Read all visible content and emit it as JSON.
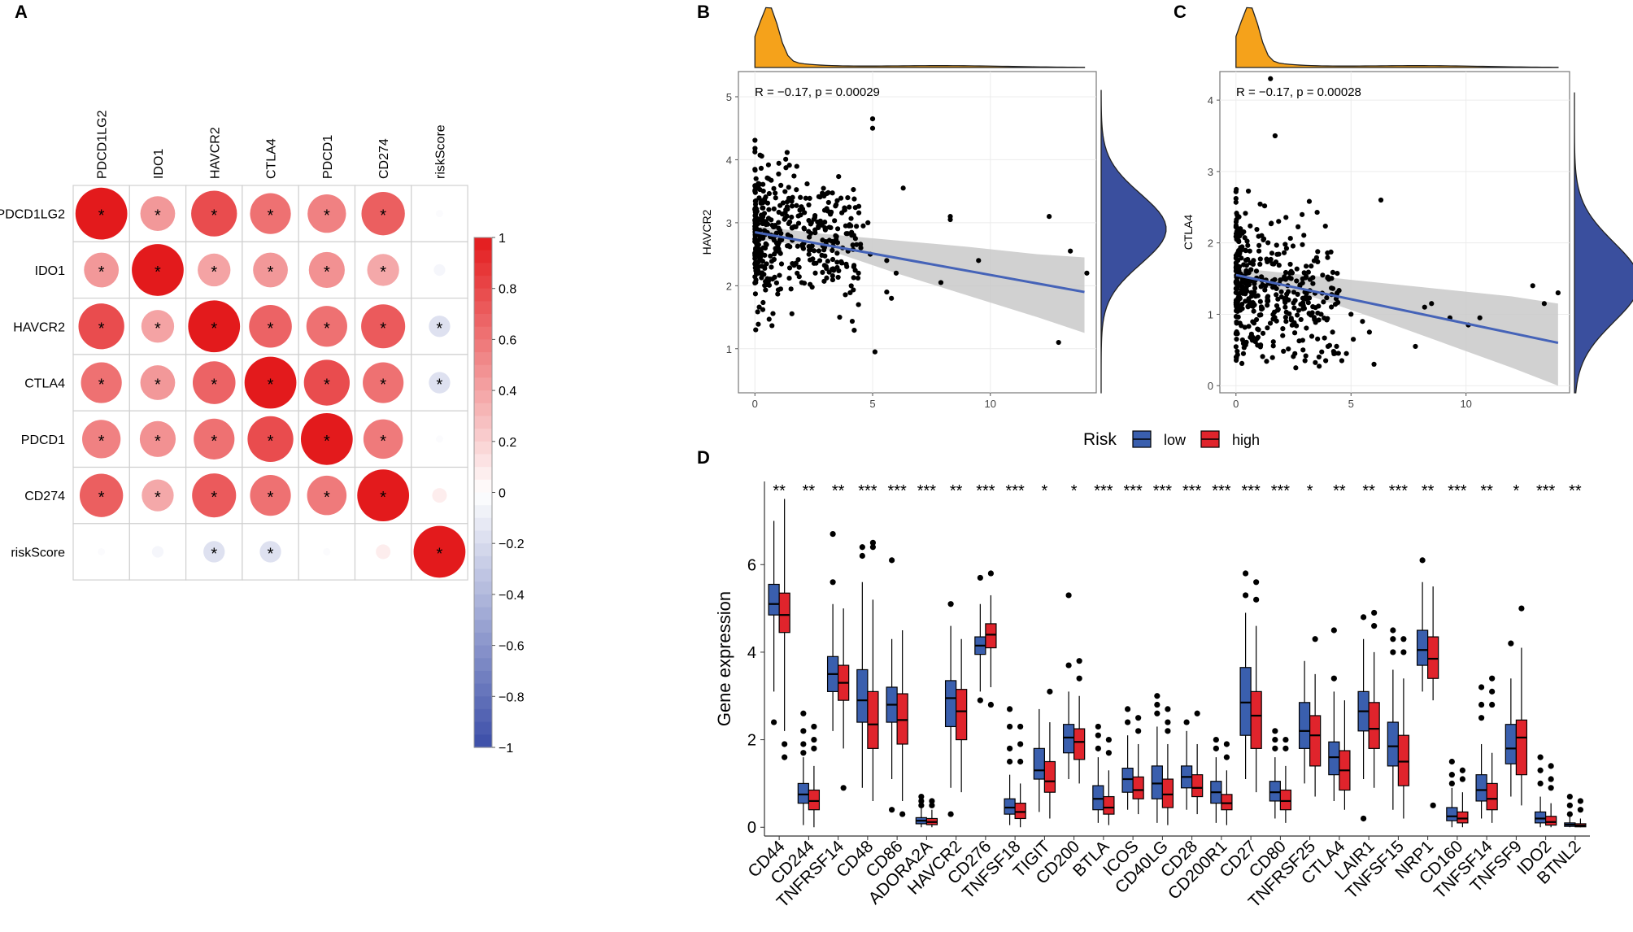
{
  "panels": {
    "a": "A",
    "b": "B",
    "c": "C",
    "d": "D"
  },
  "colors": {
    "low": "#3a5fae",
    "high": "#e0242c",
    "density": "#f5a21b",
    "densityRight": "#3a4f9e",
    "fitLine": "#4563b8",
    "ci": "#c9c9c9"
  },
  "chart_data": [
    {
      "type": "heatmap",
      "panel": "A",
      "variables": [
        "PDCD1LG2",
        "IDO1",
        "HAVCR2",
        "CTLA4",
        "PDCD1",
        "CD274",
        "riskScore"
      ],
      "matrix": [
        [
          1.0,
          0.45,
          0.78,
          0.62,
          0.55,
          0.7,
          -0.02
        ],
        [
          0.45,
          1.0,
          0.4,
          0.45,
          0.48,
          0.38,
          -0.05
        ],
        [
          0.78,
          0.4,
          1.0,
          0.68,
          0.62,
          0.72,
          -0.17
        ],
        [
          0.62,
          0.45,
          0.68,
          1.0,
          0.78,
          0.62,
          -0.17
        ],
        [
          0.55,
          0.48,
          0.62,
          0.78,
          1.0,
          0.58,
          -0.02
        ],
        [
          0.7,
          0.38,
          0.72,
          0.62,
          0.58,
          1.0,
          0.08
        ],
        [
          -0.02,
          -0.05,
          -0.17,
          -0.17,
          -0.02,
          0.08,
          1.0
        ]
      ],
      "significant": [
        [
          true,
          true,
          true,
          true,
          true,
          true,
          false
        ],
        [
          true,
          true,
          true,
          true,
          true,
          true,
          false
        ],
        [
          true,
          true,
          true,
          true,
          true,
          true,
          true
        ],
        [
          true,
          true,
          true,
          true,
          true,
          true,
          true
        ],
        [
          true,
          true,
          true,
          true,
          true,
          true,
          false
        ],
        [
          true,
          true,
          true,
          true,
          true,
          true,
          false
        ],
        [
          false,
          false,
          true,
          true,
          false,
          false,
          true
        ]
      ],
      "sigSymbol": "*",
      "colorbar": {
        "range": [
          -1,
          1
        ],
        "ticks": [
          "1",
          "0.8",
          "0.6",
          "0.4",
          "0.2",
          "0",
          "−0.2",
          "−0.4",
          "−0.6",
          "−0.8",
          "−1"
        ]
      }
    },
    {
      "type": "scatter",
      "panel": "B",
      "xlabel": "",
      "ylabel": "HAVCR2",
      "annotation": "R = −0.17, p = 0.00029",
      "xlim": [
        -0.7,
        14.5
      ],
      "ylim": [
        0.3,
        5.4
      ],
      "xticks": [
        0,
        5,
        10
      ],
      "xtickLabels": [
        "0",
        "5",
        "10"
      ],
      "yticks": [
        1,
        2,
        3,
        4,
        5
      ],
      "ytickLabels": [
        "1",
        "2",
        "3",
        "4",
        "5"
      ],
      "fit": {
        "x": [
          0,
          14
        ],
        "y": [
          2.85,
          1.9
        ]
      },
      "ci": {
        "x": [
          0,
          3,
          6,
          9,
          12,
          14
        ],
        "lower": [
          2.75,
          2.58,
          2.2,
          1.85,
          1.5,
          1.25
        ],
        "upper": [
          2.95,
          2.82,
          2.72,
          2.62,
          2.5,
          2.45
        ]
      },
      "points": {
        "x": [
          6.3,
          8.3,
          8.3,
          12.5,
          13.4,
          14.1,
          9.5,
          12.9,
          5.6,
          5.8,
          5.0,
          5.0,
          4.6,
          4.2,
          4.0,
          3.8,
          4.4,
          5.1,
          4.2,
          4.8,
          3.6,
          7.9,
          5.6,
          6.0,
          2.4,
          4.4,
          4.9,
          4.5
        ],
        "y": [
          3.55,
          3.1,
          3.05,
          3.1,
          2.55,
          2.2,
          2.4,
          1.1,
          1.9,
          1.8,
          4.5,
          4.65,
          2.95,
          2.3,
          2.95,
          3.2,
          1.7,
          0.95,
          2.8,
          3.0,
          1.5,
          2.05,
          2.4,
          2.2,
          3.0,
          2.2,
          2.5,
          2.6
        ]
      },
      "pointCloud": {
        "count": 430,
        "xmax": 4.5,
        "ycenter": 2.9,
        "ysd": 0.75,
        "seed": 11
      },
      "marginals": {
        "top": "x",
        "right": "y"
      }
    },
    {
      "type": "scatter",
      "panel": "C",
      "xlabel": "",
      "ylabel": "CTLA4",
      "annotation": "R = −0.17, p = 0.00028",
      "xlim": [
        -0.7,
        14.5
      ],
      "ylim": [
        -0.1,
        4.4
      ],
      "xticks": [
        0,
        5,
        10
      ],
      "xtickLabels": [
        "0",
        "5",
        "10"
      ],
      "yticks": [
        0,
        1,
        2,
        3,
        4
      ],
      "ytickLabels": [
        "0",
        "1",
        "2",
        "3",
        "4"
      ],
      "fit": {
        "x": [
          0,
          14
        ],
        "y": [
          1.55,
          0.6
        ]
      },
      "ci": {
        "x": [
          0,
          3,
          6,
          9,
          12,
          14
        ],
        "lower": [
          1.45,
          1.28,
          0.95,
          0.6,
          0.25,
          0.0
        ],
        "upper": [
          1.65,
          1.55,
          1.45,
          1.35,
          1.25,
          1.15
        ]
      },
      "points": {
        "x": [
          6.3,
          8.2,
          8.5,
          12.9,
          13.4,
          14.0,
          10.6,
          10.1,
          9.3,
          7.8,
          5.8,
          5.0,
          4.4,
          4.2,
          4.0,
          3.9,
          4.8,
          6.0,
          3.7,
          3.0,
          2.6,
          5.1,
          5.5,
          4.6,
          2.4,
          1.5,
          1.7,
          3.4
        ],
        "y": [
          2.6,
          1.1,
          1.15,
          1.4,
          1.15,
          1.3,
          0.95,
          0.85,
          0.95,
          0.55,
          0.75,
          1.0,
          1.3,
          0.75,
          0.55,
          0.35,
          0.45,
          0.3,
          1.0,
          0.35,
          0.25,
          0.65,
          0.9,
          0.35,
          1.6,
          4.3,
          3.5,
          1.75
        ]
      },
      "pointCloud": {
        "count": 430,
        "xmax": 4.5,
        "ycenter": 1.45,
        "ysd": 0.75,
        "seed": 23
      },
      "marginals": {
        "top": "x",
        "right": "y"
      }
    },
    {
      "type": "bar",
      "subtype": "boxplot",
      "panel": "D",
      "ylabel": "Gene expression",
      "xlabel": "",
      "ylim": [
        -0.2,
        7.9
      ],
      "yticks": [
        0,
        2,
        4,
        6
      ],
      "ytickLabels": [
        "0",
        "2",
        "4",
        "6"
      ],
      "legend": {
        "title": "Risk",
        "position": "top",
        "items": [
          "low",
          "high"
        ]
      },
      "categories": [
        "CD44",
        "CD244",
        "TNFRSF14",
        "CD48",
        "CD86",
        "ADORA2A",
        "HAVCR2",
        "CD276",
        "TNFSF18",
        "TIGIT",
        "CD200",
        "BTLA",
        "ICOS",
        "CD40LG",
        "CD28",
        "CD200R1",
        "CD27",
        "CD80",
        "TNFRSF25",
        "CTLA4",
        "LAIR1",
        "TNFSF15",
        "NRP1",
        "CD160",
        "TNFSF14",
        "TNFSF9",
        "IDO2",
        "BTNL2"
      ],
      "significance": [
        "**",
        "**",
        "**",
        "***",
        "***",
        "***",
        "**",
        "***",
        "***",
        "*",
        "*",
        "***",
        "***",
        "***",
        "***",
        "***",
        "***",
        "***",
        "*",
        "**",
        "**",
        "***",
        "**",
        "***",
        "**",
        "*",
        "***",
        "**"
      ],
      "series": [
        {
          "name": "low",
          "stats": [
            [
              3.1,
              4.85,
              5.1,
              5.55,
              7.0
            ],
            [
              0.05,
              0.55,
              0.75,
              1.0,
              1.6
            ],
            [
              2.2,
              3.1,
              3.5,
              3.9,
              5.1
            ],
            [
              0.9,
              2.4,
              2.9,
              3.6,
              5.6
            ],
            [
              1.1,
              2.4,
              2.8,
              3.2,
              4.3
            ],
            [
              0.0,
              0.08,
              0.15,
              0.22,
              0.45
            ],
            [
              0.9,
              2.3,
              2.95,
              3.35,
              4.6
            ],
            [
              3.1,
              3.95,
              4.15,
              4.35,
              5.1
            ],
            [
              0.05,
              0.3,
              0.45,
              0.65,
              1.2
            ],
            [
              0.35,
              1.1,
              1.3,
              1.8,
              2.7
            ],
            [
              1.1,
              1.7,
              2.05,
              2.35,
              3.1
            ],
            [
              0.1,
              0.4,
              0.65,
              0.95,
              1.6
            ],
            [
              0.4,
              0.8,
              1.1,
              1.35,
              2.1
            ],
            [
              0.1,
              0.65,
              1.0,
              1.4,
              2.3
            ],
            [
              0.4,
              0.9,
              1.15,
              1.4,
              2.2
            ],
            [
              0.1,
              0.55,
              0.8,
              1.05,
              1.6
            ],
            [
              1.1,
              2.1,
              2.85,
              3.65,
              4.9
            ],
            [
              0.2,
              0.6,
              0.8,
              1.05,
              1.6
            ],
            [
              1.0,
              1.8,
              2.2,
              2.85,
              3.8
            ],
            [
              0.6,
              1.2,
              1.6,
              1.95,
              3.1
            ],
            [
              1.1,
              2.2,
              2.65,
              3.1,
              4.3
            ],
            [
              0.4,
              1.4,
              1.85,
              2.4,
              3.6
            ],
            [
              3.1,
              3.7,
              4.05,
              4.5,
              5.6
            ],
            [
              0.0,
              0.15,
              0.25,
              0.45,
              0.9
            ],
            [
              0.2,
              0.6,
              0.85,
              1.2,
              1.9
            ],
            [
              0.7,
              1.45,
              1.8,
              2.35,
              3.4
            ],
            [
              0.0,
              0.1,
              0.2,
              0.35,
              0.7
            ],
            [
              0.0,
              0.02,
              0.06,
              0.1,
              0.25
            ]
          ],
          "outliers": [
            [
              2.4
            ],
            [
              2.6,
              2.2,
              1.9,
              1.7
            ],
            [
              5.6,
              6.7
            ],
            [
              6.2,
              6.4
            ],
            [
              6.1,
              0.4
            ],
            [
              0.5,
              0.6,
              0.7
            ],
            [
              5.1,
              0.3
            ],
            [
              2.9,
              5.7
            ],
            [
              2.7,
              2.3,
              1.8,
              1.5
            ],
            [],
            [
              5.3,
              3.7
            ],
            [
              2.3,
              2.1,
              1.8
            ],
            [
              2.7,
              2.4
            ],
            [
              3.0,
              2.8,
              2.6
            ],
            [
              2.4
            ],
            [
              2.0,
              1.8
            ],
            [
              5.8,
              5.3
            ],
            [
              2.2,
              2.0,
              1.8
            ],
            [],
            [
              4.5,
              3.4
            ],
            [
              4.8,
              0.2
            ],
            [
              4.5,
              4.3,
              4.0
            ],
            [
              6.1
            ],
            [
              1.5,
              1.2,
              1.0
            ],
            [
              3.2,
              2.8,
              2.5
            ],
            [
              4.2
            ],
            [
              1.6,
              1.3,
              1.0
            ],
            [
              0.7,
              0.5,
              0.3
            ]
          ]
        },
        {
          "name": "high",
          "stats": [
            [
              2.2,
              4.45,
              4.85,
              5.35,
              7.5
            ],
            [
              0.0,
              0.4,
              0.6,
              0.85,
              1.4
            ],
            [
              1.8,
              2.9,
              3.3,
              3.7,
              5.0
            ],
            [
              0.6,
              1.8,
              2.35,
              3.1,
              5.2
            ],
            [
              0.6,
              1.9,
              2.45,
              3.05,
              4.5
            ],
            [
              0.0,
              0.06,
              0.12,
              0.2,
              0.4
            ],
            [
              0.8,
              2.0,
              2.65,
              3.15,
              4.3
            ],
            [
              3.2,
              4.1,
              4.4,
              4.65,
              5.3
            ],
            [
              0.0,
              0.2,
              0.35,
              0.55,
              1.0
            ],
            [
              0.2,
              0.8,
              1.05,
              1.5,
              2.4
            ],
            [
              1.0,
              1.55,
              1.95,
              2.25,
              3.0
            ],
            [
              0.05,
              0.3,
              0.45,
              0.7,
              1.3
            ],
            [
              0.3,
              0.65,
              0.85,
              1.15,
              1.9
            ],
            [
              0.05,
              0.45,
              0.75,
              1.1,
              1.9
            ],
            [
              0.3,
              0.7,
              0.9,
              1.2,
              1.9
            ],
            [
              0.05,
              0.4,
              0.55,
              0.75,
              1.3
            ],
            [
              0.8,
              1.8,
              2.55,
              3.1,
              4.6
            ],
            [
              0.1,
              0.4,
              0.6,
              0.85,
              1.4
            ],
            [
              0.7,
              1.4,
              2.1,
              2.55,
              3.5
            ],
            [
              0.4,
              0.85,
              1.3,
              1.75,
              2.9
            ],
            [
              0.9,
              1.8,
              2.25,
              2.85,
              4.0
            ],
            [
              0.2,
              0.95,
              1.5,
              2.1,
              3.4
            ],
            [
              2.9,
              3.4,
              3.85,
              4.35,
              5.5
            ],
            [
              0.0,
              0.1,
              0.2,
              0.35,
              0.8
            ],
            [
              0.1,
              0.4,
              0.65,
              1.0,
              1.7
            ],
            [
              0.5,
              1.2,
              2.05,
              2.45,
              4.1
            ],
            [
              0.0,
              0.05,
              0.12,
              0.25,
              0.55
            ],
            [
              0.0,
              0.01,
              0.04,
              0.08,
              0.2
            ]
          ],
          "outliers": [
            [
              1.9,
              1.6
            ],
            [
              2.3,
              2.0,
              1.8
            ],
            [
              0.9
            ],
            [
              6.4,
              6.5
            ],
            [
              0.3
            ],
            [
              0.5,
              0.6
            ],
            [],
            [
              5.8,
              2.8
            ],
            [
              2.3,
              1.9,
              1.5
            ],
            [
              3.1
            ],
            [
              3.8,
              3.4
            ],
            [
              2.0,
              1.7
            ],
            [
              2.5,
              2.2
            ],
            [
              2.7,
              2.4,
              2.2
            ],
            [
              2.6
            ],
            [
              1.9,
              1.6
            ],
            [
              5.6,
              5.2
            ],
            [
              2.0,
              1.8
            ],
            [
              4.3
            ],
            [],
            [
              4.9,
              4.6
            ],
            [
              4.3,
              4.0
            ],
            [
              0.5
            ],
            [
              1.3,
              1.1
            ],
            [
              3.4,
              3.1,
              2.8
            ],
            [
              5.0
            ],
            [
              1.4,
              1.1,
              0.9
            ],
            [
              0.6,
              0.4
            ]
          ]
        }
      ]
    }
  ]
}
